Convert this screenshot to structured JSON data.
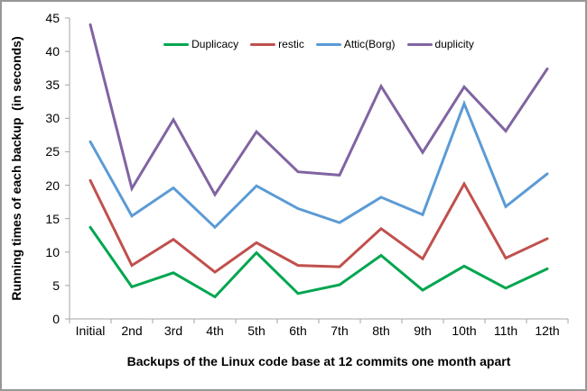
{
  "chart_data": {
    "type": "line",
    "title": "",
    "xlabel": "Backups of the Linux code base at 12 commits one month apart",
    "ylabel": "Running times of each backup  (in seconds)",
    "categories": [
      "Initial",
      "2nd",
      "3rd",
      "4th",
      "5th",
      "6th",
      "7th",
      "8th",
      "9th",
      "10th",
      "11th",
      "12th"
    ],
    "y_ticks": [
      0,
      5,
      10,
      15,
      20,
      25,
      30,
      35,
      40,
      45
    ],
    "ylim": [
      0,
      45
    ],
    "grid": false,
    "legend_position": "top-center",
    "axis_color": "#A6A6A6",
    "series": [
      {
        "name": "Duplicacy",
        "color": "#00A64F",
        "values": [
          13.7,
          4.8,
          6.9,
          3.3,
          9.9,
          3.8,
          5.1,
          9.5,
          4.3,
          7.9,
          4.6,
          7.5
        ]
      },
      {
        "name": "restic",
        "color": "#C0504D",
        "values": [
          20.7,
          8.0,
          11.9,
          7.0,
          11.4,
          8.0,
          7.8,
          13.5,
          9.0,
          20.2,
          9.1,
          12.0
        ]
      },
      {
        "name": "Attic(Borg)",
        "color": "#5B9BD5",
        "values": [
          26.5,
          15.4,
          19.6,
          13.7,
          19.9,
          16.5,
          14.4,
          18.2,
          15.6,
          32.2,
          16.8,
          21.7
        ]
      },
      {
        "name": "duplicity",
        "color": "#8064A2",
        "values": [
          44.0,
          19.5,
          29.8,
          18.6,
          28.0,
          22.0,
          21.5,
          34.8,
          24.9,
          34.7,
          28.1,
          37.4
        ]
      }
    ]
  }
}
